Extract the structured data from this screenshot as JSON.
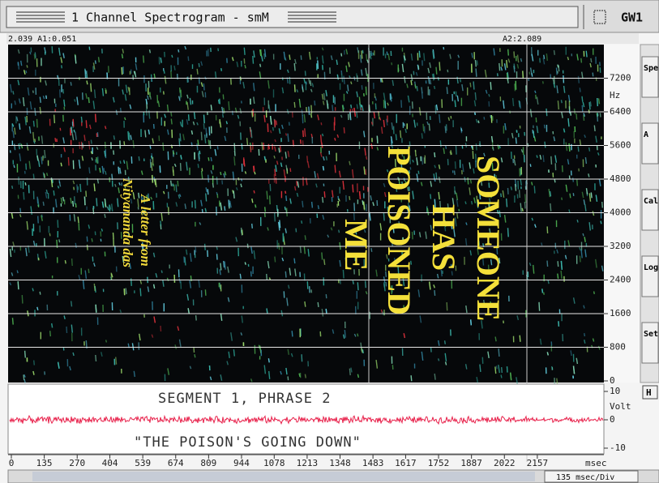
{
  "window": {
    "title": "1 Channel Spectrogram - smM",
    "app_label": "GW1"
  },
  "cursor_bar": {
    "left": "2.039  A1:0.051",
    "right": "A2:2.089"
  },
  "spectrogram": {
    "ylim": [
      0,
      8000
    ],
    "yticks": [
      0,
      800,
      1600,
      2400,
      3200,
      4000,
      4800,
      5600,
      6400,
      7200
    ],
    "unit": "Hz",
    "annotation": [
      "SOMEONE",
      "HAS",
      "POISONED",
      "ME"
    ],
    "note": [
      "A letter from",
      "Nityananda das"
    ]
  },
  "waveform": {
    "ylim": [
      -12,
      12
    ],
    "yticks": [
      -10,
      0,
      10
    ],
    "unit": "Volt",
    "caption": "SEGMENT 1, PHRASE 2",
    "quote": "\"THE POISON'S GOING DOWN\""
  },
  "time_axis": {
    "xlim": [
      0,
      2430
    ],
    "ticks": [
      0,
      135,
      270,
      404,
      539,
      674,
      809,
      944,
      1078,
      1213,
      1348,
      1483,
      1617,
      1752,
      1887,
      2022,
      2157
    ],
    "unit": "msec"
  },
  "scrollbar": {
    "scale_label": "135 msec/Div"
  },
  "side_panel": {
    "buttons": [
      "Spe",
      "A",
      "Cal",
      "Log",
      "Set"
    ],
    "h_button": "H"
  }
}
